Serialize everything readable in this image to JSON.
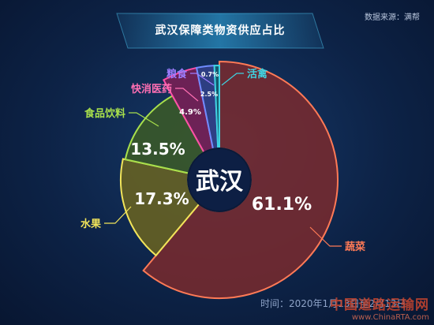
{
  "header": {
    "title": "武汉保障类物资供应占比",
    "source": "数据来源：满帮"
  },
  "footer": {
    "time_range": "时间：2020年1月13日至2月13日"
  },
  "watermark": {
    "cn": "中国道路运输网",
    "en": "www.ChinaRTA.com"
  },
  "colors": {
    "background": "#0d2347",
    "banner": "#1f5f8c",
    "center_circle": "#0d1f44"
  },
  "chart_data": {
    "type": "pie",
    "center_label": "武汉",
    "title": "武汉保障类物资供应占比",
    "series": [
      {
        "name": "蔬菜",
        "value": 61.1,
        "label": "61.1%",
        "stroke": "#ff7a56",
        "fill": "#7a2a2e",
        "label_color": "#ff7a56"
      },
      {
        "name": "水果",
        "value": 17.3,
        "label": "17.3%",
        "stroke": "#f1e45a",
        "fill": "#6b6420",
        "label_color": "#f1e45a"
      },
      {
        "name": "食品饮料",
        "value": 13.5,
        "label": "13.5%",
        "stroke": "#a8e04c",
        "fill": "#3c5a26",
        "label_color": "#a8e04c"
      },
      {
        "name": "快消医药",
        "value": 4.9,
        "label": "4.9%",
        "stroke": "#ff4fa8",
        "fill": "#7c1f55",
        "label_color": "#ff6fb3"
      },
      {
        "name": "粮食",
        "value": 2.5,
        "label": "2.5%",
        "stroke": "#6f8cff",
        "fill": "#33418a",
        "label_color": "#9d7dff"
      },
      {
        "name": "活禽",
        "value": 0.7,
        "label": "0.7%",
        "stroke": "#3fd2e0",
        "fill": "#156072",
        "label_color": "#3fd2e0"
      }
    ]
  }
}
